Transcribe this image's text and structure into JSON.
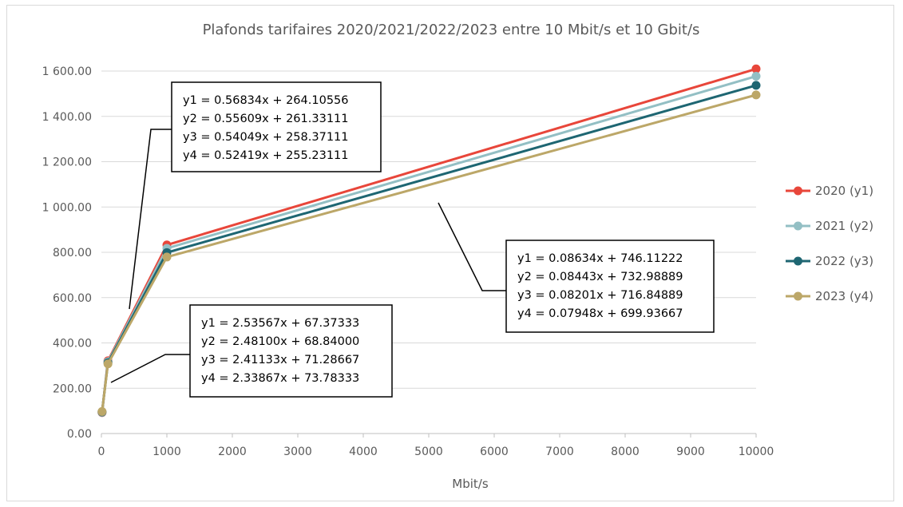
{
  "chart_data": {
    "type": "line",
    "title": "Plafonds tarifaires 2020/2021/2022/2023 entre 10 Mbit/s et 10 Gbit/s",
    "xlabel": "Mbit/s",
    "ylabel": "",
    "xlim": [
      0,
      10000
    ],
    "ylim": [
      0,
      1600
    ],
    "x_ticks": [
      "0",
      "1000",
      "2000",
      "3000",
      "4000",
      "5000",
      "6000",
      "7000",
      "8000",
      "9000",
      "10000"
    ],
    "x_tick_values": [
      0,
      1000,
      2000,
      3000,
      4000,
      5000,
      6000,
      7000,
      8000,
      9000,
      10000
    ],
    "y_ticks": [
      "0.00",
      "200.00",
      "400.00",
      "600.00",
      "800.00",
      "1 000.00",
      "1 200.00",
      "1 400.00",
      "1 600.00"
    ],
    "y_tick_values": [
      0,
      200,
      400,
      600,
      800,
      1000,
      1200,
      1400,
      1600
    ],
    "grid": "horizontal",
    "legend_position": "right",
    "x": [
      10,
      100,
      1000,
      10000
    ],
    "series": [
      {
        "name": "2020 (y1)",
        "color": "#e8463a",
        "values": [
          92.73,
          320.94,
          832.45,
          1609.51
        ]
      },
      {
        "name": "2021 (y2)",
        "color": "#93bfc4",
        "values": [
          93.65,
          316.94,
          817.42,
          1577.28
        ]
      },
      {
        "name": "2022 (y3)",
        "color": "#1e6672",
        "values": [
          95.4,
          312.42,
          798.86,
          1536.95
        ]
      },
      {
        "name": "2023 (y4)",
        "color": "#bca768",
        "values": [
          97.17,
          307.65,
          779.12,
          1494.73
        ]
      }
    ],
    "annotations": [
      {
        "id": "eq-high-low",
        "lines": [
          "y1 = 0.56834x + 264.10556",
          "y2 = 0.55609x + 261.33111",
          "y3 = 0.54049x + 258.37111",
          "y4 = 0.52419x + 255.23111"
        ]
      },
      {
        "id": "eq-low",
        "lines": [
          "y1 = 2.53567x + 67.37333",
          "y2 = 2.48100x + 68.84000",
          "y3 = 2.41133x + 71.28667",
          "y4 = 2.33867x + 73.78333"
        ]
      },
      {
        "id": "eq-high",
        "lines": [
          "y1 = 0.08634x + 746.11222",
          "y2 = 0.08443x + 732.98889",
          "y3 = 0.08201x + 716.84889",
          "y4 = 0.07948x + 699.93667"
        ]
      }
    ]
  }
}
